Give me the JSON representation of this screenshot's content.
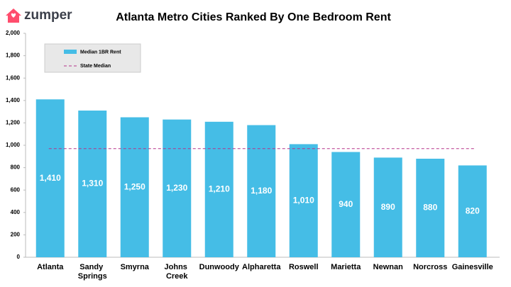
{
  "logo": "zumper",
  "chart_data": {
    "type": "bar",
    "title": "Atlanta Metro Cities Ranked By One Bedroom Rent",
    "categories": [
      "Atlanta",
      "Sandy Springs",
      "Smyrna",
      "Johns Creek",
      "Dunwoody",
      "Alpharetta",
      "Roswell",
      "Marietta",
      "Newnan",
      "Norcross",
      "Gainesville"
    ],
    "series": [
      {
        "name": "Median 1BR Rent",
        "color": "#45bde6",
        "values": [
          1410,
          1310,
          1250,
          1230,
          1210,
          1180,
          1010,
          940,
          890,
          880,
          820
        ],
        "value_labels": [
          "1,410",
          "1,310",
          "1,250",
          "1,230",
          "1,210",
          "1,180",
          "1,010",
          "940",
          "890",
          "880",
          "820"
        ]
      }
    ],
    "reference_line": {
      "name": "State Median",
      "value": 970,
      "color": "#b5338a"
    },
    "ylim": [
      0,
      2000
    ],
    "yticks": [
      0,
      200,
      400,
      600,
      800,
      {
        "value": 1000,
        "label": "1,000"
      },
      {
        "value": 1200,
        "label": "1,200"
      },
      {
        "value": 1400,
        "label": "1,400"
      },
      {
        "value": 1600,
        "label": "1,600"
      },
      {
        "value": 1800,
        "label": "1,800"
      },
      {
        "value": 2000,
        "label": "2,000"
      }
    ],
    "grid": false,
    "legend": "top-left"
  }
}
